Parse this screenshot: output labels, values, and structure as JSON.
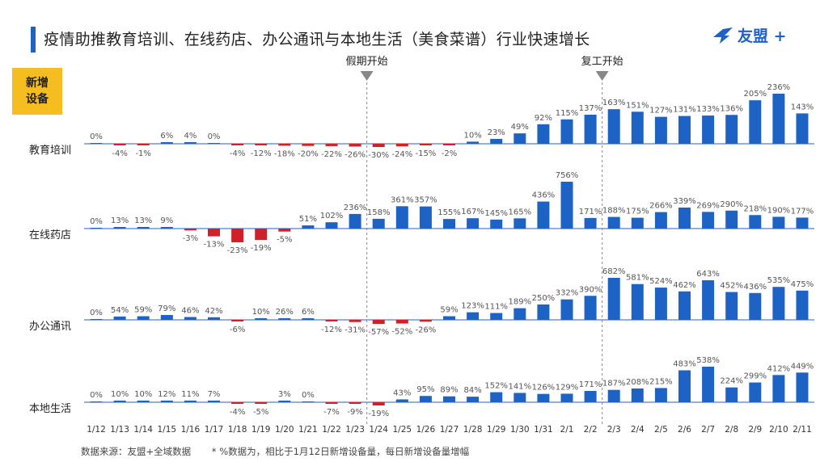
{
  "title": "疫情助推教育培训、在线药店、办公通讯与本地生活（美食菜谱）行业快速增长",
  "logo": {
    "text": "友盟 +",
    "icon": "umeng-bird-icon",
    "color": "#1d63c6"
  },
  "badge": {
    "line1": "新增",
    "line2": "设备"
  },
  "footer": {
    "source": "数据来源：友盟+全域数据",
    "note": "* %数据为，相比于1月12日新增设备量，每日新增设备量增幅"
  },
  "colors": {
    "positive": "#1d63c6",
    "negative": "#d0202a",
    "axis": "#1d63c6",
    "accent": "#f5bd1f"
  },
  "chart_data": {
    "type": "bar",
    "categories": [
      "1/12",
      "1/13",
      "1/14",
      "1/15",
      "1/16",
      "1/17",
      "1/18",
      "1/19",
      "1/20",
      "1/21",
      "1/22",
      "1/23",
      "1/24",
      "1/25",
      "1/26",
      "1/27",
      "1/28",
      "1/29",
      "1/30",
      "1/31",
      "2/1",
      "2/2",
      "2/3",
      "2/4",
      "2/5",
      "2/6",
      "2/7",
      "2/8",
      "2/9",
      "2/10",
      "2/11"
    ],
    "unit": "%",
    "annotations": [
      {
        "label": "假期开始",
        "between": [
          "1/23",
          "1/24"
        ]
      },
      {
        "label": "复工开始",
        "between": [
          "2/2",
          "2/3"
        ]
      }
    ],
    "series": [
      {
        "name": "教育培训",
        "values": [
          0,
          -4,
          -1,
          6,
          4,
          0,
          -4,
          -12,
          -18,
          -20,
          -22,
          -26,
          -30,
          -24,
          -15,
          -2,
          10,
          23,
          49,
          92,
          115,
          137,
          163,
          151,
          127,
          131,
          133,
          136,
          205,
          236,
          143
        ]
      },
      {
        "name": "在线药店",
        "values": [
          0,
          13,
          13,
          9,
          -3,
          -13,
          -23,
          -19,
          -5,
          51,
          102,
          236,
          158,
          361,
          357,
          155,
          167,
          145,
          165,
          436,
          756,
          171,
          188,
          175,
          266,
          339,
          269,
          290,
          218,
          190,
          177
        ]
      },
      {
        "name": "办公通讯",
        "values": [
          0,
          54,
          59,
          79,
          46,
          42,
          -6,
          10,
          26,
          6,
          -12,
          -31,
          -57,
          -52,
          -26,
          59,
          123,
          111,
          189,
          250,
          332,
          390,
          682,
          581,
          524,
          462,
          643,
          452,
          436,
          535,
          475
        ]
      },
      {
        "name": "本地生活",
        "values": [
          0,
          10,
          10,
          12,
          11,
          7,
          -4,
          -5,
          3,
          0,
          -7,
          -9,
          -19,
          43,
          95,
          89,
          84,
          152,
          141,
          126,
          129,
          171,
          187,
          208,
          215,
          483,
          538,
          224,
          299,
          412,
          449
        ]
      }
    ]
  }
}
